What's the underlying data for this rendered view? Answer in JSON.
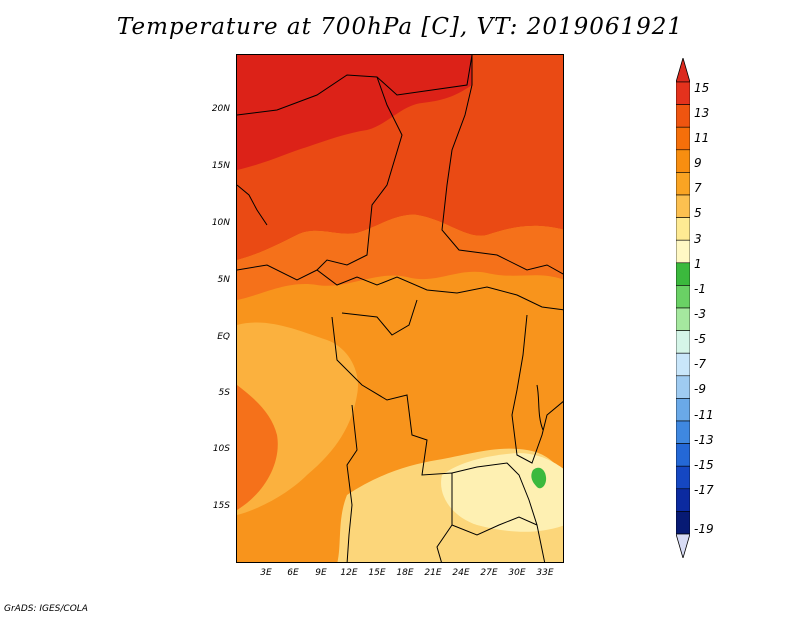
{
  "title": "Temperature at 700hPa [C], VT: 2019061921",
  "credit": "GrADS: IGES/COLA",
  "lat_labels": [
    "20N",
    "15N",
    "10N",
    "5N",
    "EQ",
    "5S",
    "10S",
    "15S"
  ],
  "lon_labels": [
    "3E",
    "6E",
    "9E",
    "12E",
    "15E",
    "18E",
    "21E",
    "24E",
    "27E",
    "30E",
    "33E"
  ],
  "colorbar": {
    "labels": [
      "15",
      "13",
      "11",
      "9",
      "7",
      "5",
      "3",
      "1",
      "-1",
      "-3",
      "-5",
      "-7",
      "-9",
      "-11",
      "-13",
      "-15",
      "-17",
      "-19"
    ],
    "colors": {
      "top_arrow": "#dc2a1e",
      "blocks": [
        "#e4321d",
        "#ef5510",
        "#f56f0a",
        "#f88e10",
        "#faa423",
        "#fcc050",
        "#feea93",
        "#fff8c4",
        "#3bb93d",
        "#6ad165",
        "#a5e89f",
        "#d5f5e8",
        "#c9e6fa",
        "#9fcbf1",
        "#6aa9e8",
        "#3f88e0",
        "#2468d6",
        "#1547c2",
        "#0b2aa0",
        "#071a74"
      ],
      "bottom_arrow": "#d8dcf5"
    }
  },
  "map_colors": {
    "deep_red": "#dc2218",
    "red_orange": "#ea4a14",
    "orange_dark": "#f5711a",
    "orange": "#f8941c",
    "orange_light": "#fbb13e",
    "yellow": "#fcd67a",
    "pale_yellow": "#fef0b2",
    "green": "#3bb93d"
  }
}
